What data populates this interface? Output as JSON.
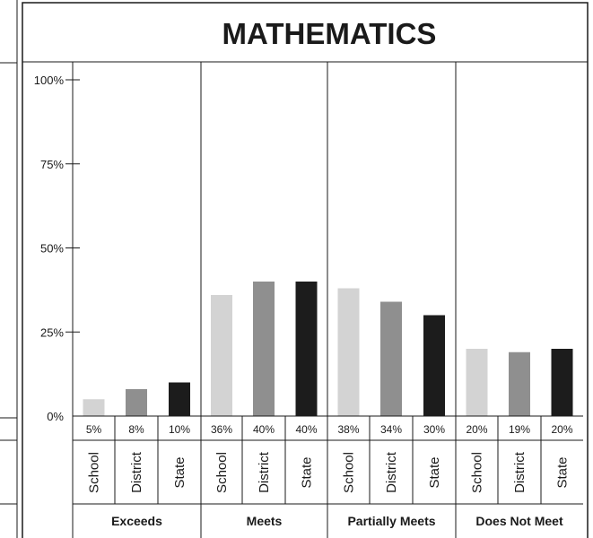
{
  "chart_data": {
    "type": "bar",
    "title": "MATHEMATICS",
    "ylim": [
      0,
      100
    ],
    "yticks": [
      {
        "value": 0,
        "label": "0%"
      },
      {
        "value": 25,
        "label": "25%"
      },
      {
        "value": 50,
        "label": "50%"
      },
      {
        "value": 75,
        "label": "75%"
      },
      {
        "value": 100,
        "label": "100%"
      }
    ],
    "groups": [
      {
        "name": "Exceeds",
        "bars": [
          {
            "label": "School",
            "value": 5,
            "text": "5%",
            "color": "#d3d3d3"
          },
          {
            "label": "District",
            "value": 8,
            "text": "8%",
            "color": "#8f8f8f"
          },
          {
            "label": "State",
            "value": 10,
            "text": "10%",
            "color": "#1c1c1c"
          }
        ]
      },
      {
        "name": "Meets",
        "bars": [
          {
            "label": "School",
            "value": 36,
            "text": "36%",
            "color": "#d3d3d3"
          },
          {
            "label": "District",
            "value": 40,
            "text": "40%",
            "color": "#8f8f8f"
          },
          {
            "label": "State",
            "value": 40,
            "text": "40%",
            "color": "#1c1c1c"
          }
        ]
      },
      {
        "name": "Partially Meets",
        "bars": [
          {
            "label": "School",
            "value": 38,
            "text": "38%",
            "color": "#d3d3d3"
          },
          {
            "label": "District",
            "value": 34,
            "text": "34%",
            "color": "#8f8f8f"
          },
          {
            "label": "State",
            "value": 30,
            "text": "30%",
            "color": "#1c1c1c"
          }
        ]
      },
      {
        "name": "Does Not Meet",
        "bars": [
          {
            "label": "School",
            "value": 20,
            "text": "20%",
            "color": "#d3d3d3"
          },
          {
            "label": "District",
            "value": 19,
            "text": "19%",
            "color": "#8f8f8f"
          },
          {
            "label": "State",
            "value": 20,
            "text": "20%",
            "color": "#1c1c1c"
          }
        ]
      }
    ],
    "grid": false
  }
}
